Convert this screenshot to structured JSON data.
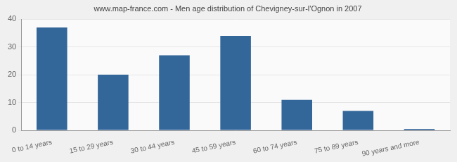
{
  "chart_data": {
    "type": "bar",
    "title": "www.map-france.com - Men age distribution of Chevigney-sur-l'Ognon in 2007",
    "categories": [
      "0 to 14 years",
      "15 to 29 years",
      "30 to 44 years",
      "45 to 59 years",
      "60 to 74 years",
      "75 to 89 years",
      "90 years and more"
    ],
    "values": [
      37,
      20,
      27,
      34,
      11,
      7,
      0
    ],
    "color": "#336699",
    "ylim": [
      0,
      40
    ],
    "yticks": [
      0,
      10,
      20,
      30,
      40
    ],
    "grid": true
  }
}
